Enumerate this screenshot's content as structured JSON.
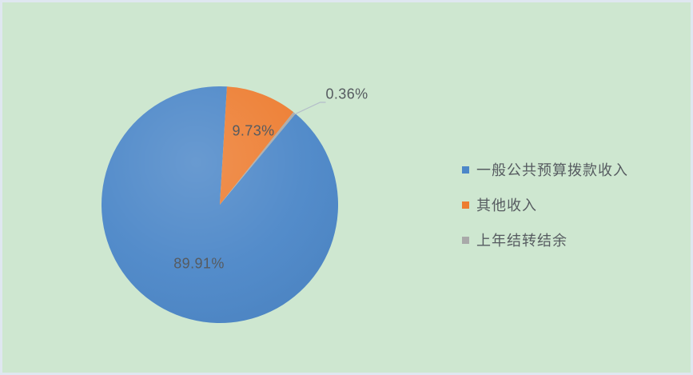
{
  "chart_data": {
    "type": "pie",
    "title": "",
    "unit": "percent",
    "direction": "clockwise",
    "rotation_deg": 39.8,
    "legend_position": "right",
    "data_labels": "percentage",
    "slices": [
      {
        "label": "一般公共预算拨款收入",
        "value": 89.91,
        "display": "89.91%",
        "color": "#4c87c8"
      },
      {
        "label": "其他收入",
        "value": 9.73,
        "display": "9.73%",
        "color": "#ed7d31"
      },
      {
        "label": "上年结转结余",
        "value": 0.36,
        "display": "0.36%",
        "color": "#a9a9a9"
      }
    ]
  },
  "colors": {
    "background": "#cee7d0",
    "frame": "#dfe7f0",
    "label_text": "#565b60",
    "leader_line": "#b3bdc9"
  }
}
